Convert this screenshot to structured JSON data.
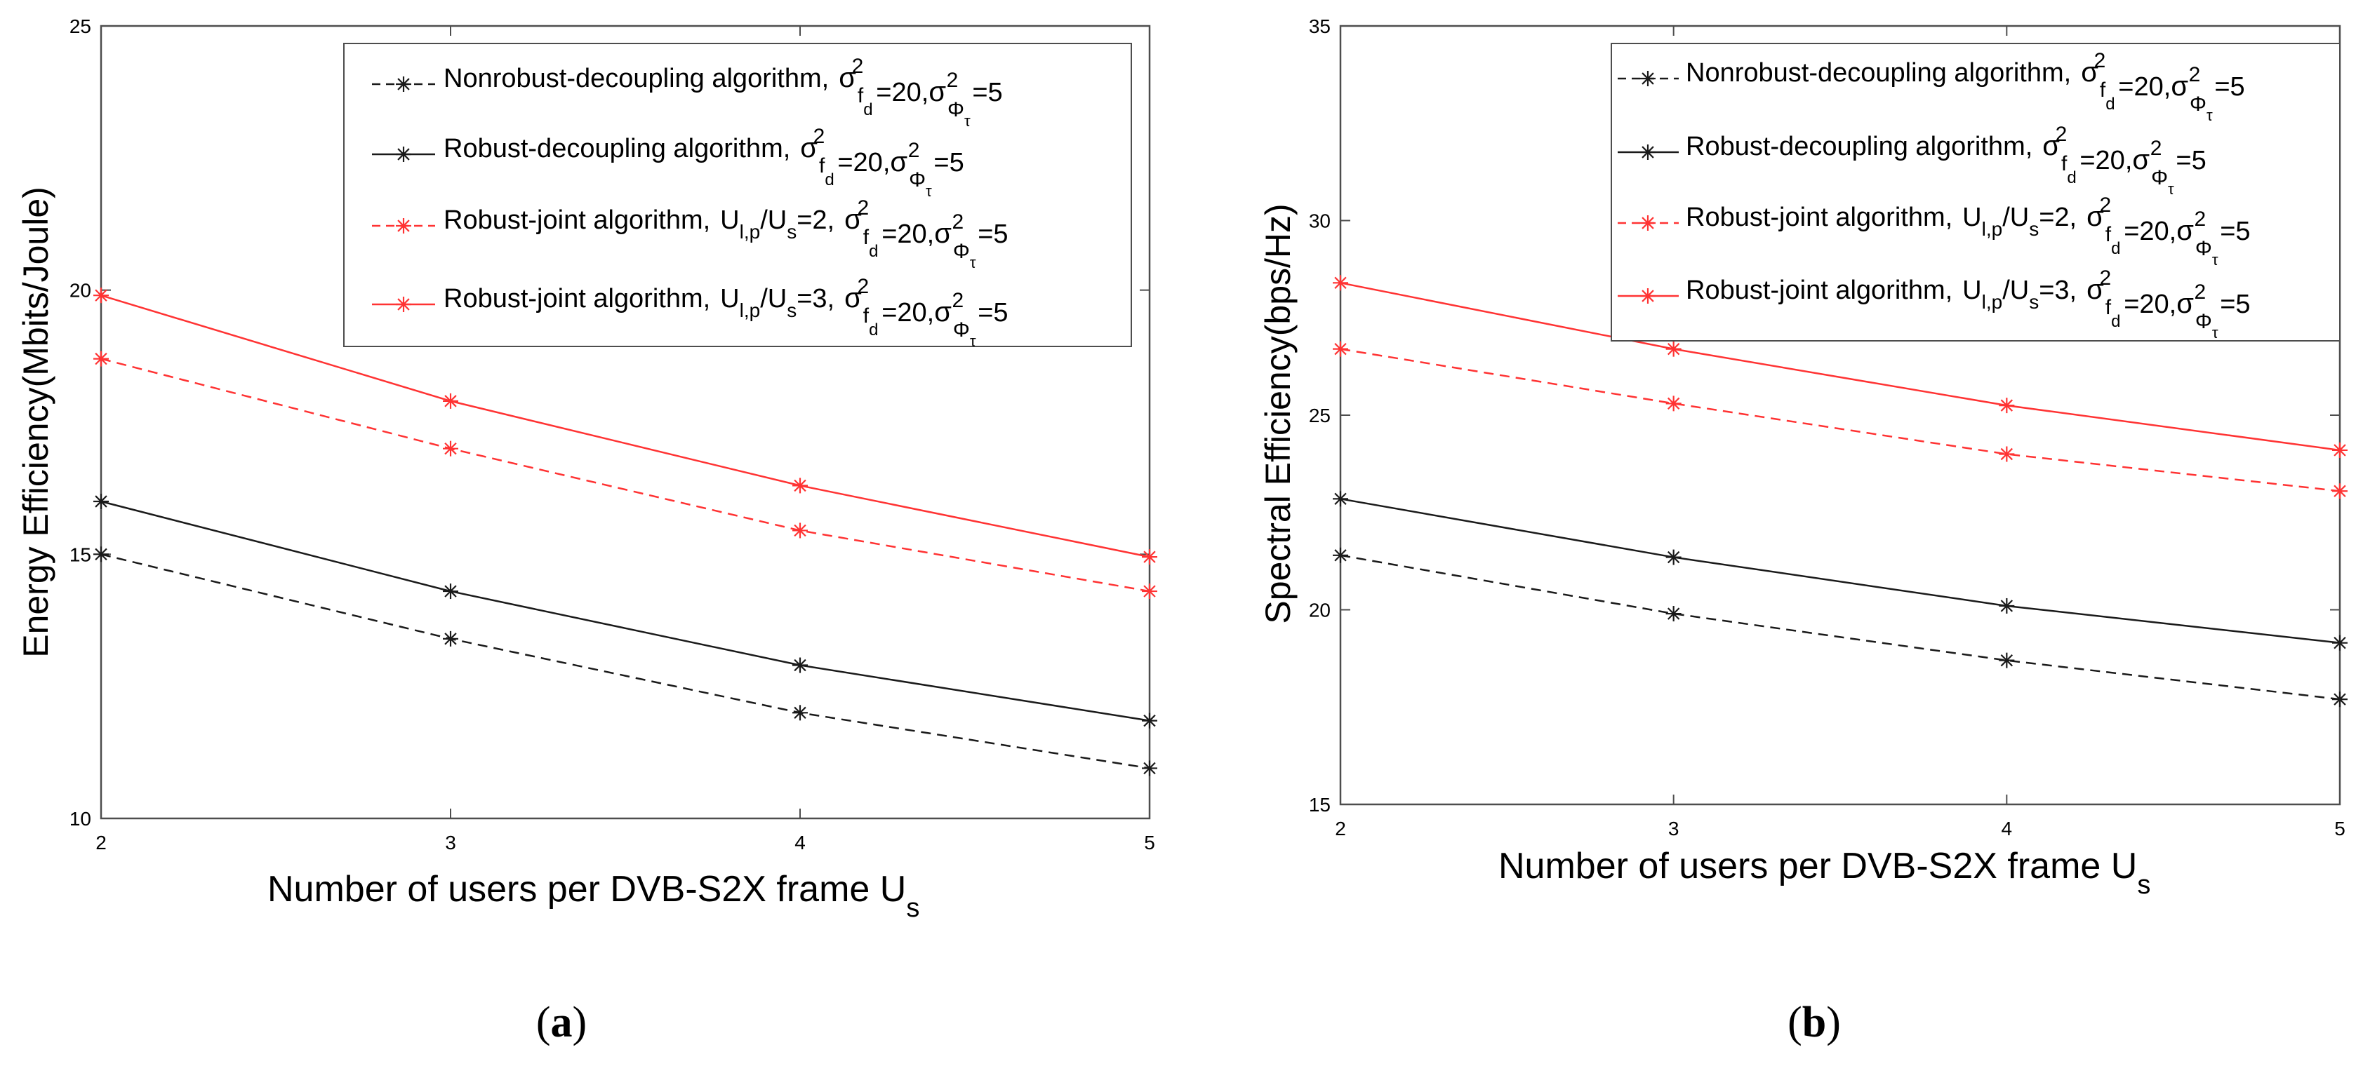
{
  "chart_data": [
    {
      "type": "line",
      "panel_label": "a",
      "title": "",
      "xlabel": "Number of users per DVB-S2X frame",
      "xlabel_symbol": "U",
      "xlabel_sub": "s",
      "ylabel": "Energy Efficiency(Mbits/Joule)",
      "x": [
        2,
        3,
        4,
        5
      ],
      "xlim": [
        2,
        5
      ],
      "ylim": [
        10,
        25
      ],
      "yticks": [
        10,
        15,
        20,
        25
      ],
      "grid": false,
      "legend_position": "top-right",
      "series": [
        {
          "name": "Nonrobust-decoupling algorithm,",
          "values": [
            15.0,
            13.4,
            12.0,
            10.95
          ]
        },
        {
          "name": "Robust-decoupling algorithm,",
          "values": [
            16.0,
            14.3,
            12.9,
            11.85
          ]
        },
        {
          "name": "Robust-joint algorithm,",
          "ratio": "=2,",
          "values": [
            18.7,
            17.0,
            15.45,
            14.3
          ]
        },
        {
          "name": "Robust-joint algorithm,",
          "ratio": "=3,",
          "values": [
            19.9,
            17.9,
            16.3,
            14.95
          ]
        }
      ]
    },
    {
      "type": "line",
      "panel_label": "b",
      "title": "",
      "xlabel": "Number of users per DVB-S2X frame",
      "xlabel_symbol": "U",
      "xlabel_sub": "s",
      "ylabel": "Spectral Efficiency(bps/Hz)",
      "x": [
        2,
        3,
        4,
        5
      ],
      "xlim": [
        2,
        5
      ],
      "ylim": [
        15,
        35
      ],
      "yticks": [
        15,
        20,
        25,
        30,
        35
      ],
      "grid": false,
      "legend_position": "top-right",
      "series": [
        {
          "name": "Nonrobust-decoupling algorithm,",
          "values": [
            21.4,
            19.9,
            18.7,
            17.7
          ]
        },
        {
          "name": "Robust-decoupling algorithm,",
          "values": [
            22.85,
            21.35,
            20.1,
            19.15
          ]
        },
        {
          "name": "Robust-joint algorithm,",
          "ratio": "=2,",
          "values": [
            26.7,
            25.3,
            24.0,
            23.05
          ]
        },
        {
          "name": "Robust-joint algorithm,",
          "ratio": "=3,",
          "values": [
            28.4,
            26.7,
            25.25,
            24.1
          ]
        }
      ]
    }
  ],
  "legend_math": {
    "sigma": "σ",
    "sup2": "2",
    "sub_f": "f",
    "sub_d": "d",
    "eq20": "=20,",
    "sub_phi": "Φ",
    "sub_tau": "τ",
    "eq5": "=5",
    "U": "U",
    "sub_lp": "l,p",
    "slash": "/",
    "sub_s": "s"
  },
  "styles": {
    "series_colors": [
      "#1a1a1a",
      "#1a1a1a",
      "#ff3333",
      "#ff3333"
    ],
    "series_dashed": [
      true,
      false,
      true,
      false
    ],
    "marker": "asterisk"
  }
}
